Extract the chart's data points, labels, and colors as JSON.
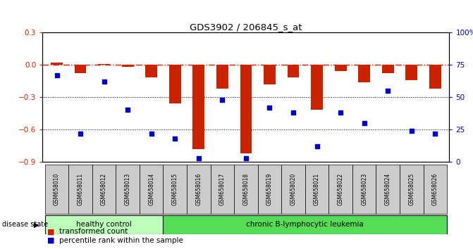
{
  "title": "GDS3902 / 206845_s_at",
  "samples": [
    "GSM658010",
    "GSM658011",
    "GSM658012",
    "GSM658013",
    "GSM658014",
    "GSM658015",
    "GSM658016",
    "GSM658017",
    "GSM658018",
    "GSM658019",
    "GSM658020",
    "GSM658021",
    "GSM658022",
    "GSM658023",
    "GSM658024",
    "GSM658025",
    "GSM658026"
  ],
  "red_values": [
    0.02,
    -0.08,
    0.01,
    -0.02,
    -0.12,
    -0.36,
    -0.78,
    -0.22,
    -0.82,
    -0.18,
    -0.12,
    -0.42,
    -0.06,
    -0.16,
    -0.08,
    -0.14,
    -0.22
  ],
  "blue_values": [
    67,
    22,
    62,
    40,
    22,
    18,
    3,
    48,
    3,
    42,
    38,
    12,
    38,
    30,
    55,
    24,
    22
  ],
  "ylim_left": [
    -0.9,
    0.3
  ],
  "ylim_right": [
    0,
    100
  ],
  "left_yticks": [
    -0.9,
    -0.6,
    -0.3,
    0,
    0.3
  ],
  "right_yticks": [
    0,
    25,
    50,
    75,
    100
  ],
  "right_yticklabels": [
    "0",
    "25",
    "50",
    "75",
    "100%"
  ],
  "healthy_count": 5,
  "healthy_label": "healthy control",
  "disease_label": "chronic B-lymphocytic leukemia",
  "disease_state_label": "disease state",
  "legend_red": "transformed count",
  "legend_blue": "percentile rank within the sample",
  "bar_color": "#cc2200",
  "dot_color": "#0000cc",
  "hline_color": "#cc2200",
  "grid_color": "#000000",
  "healthy_bg": "#bbffbb",
  "disease_bg": "#55dd55",
  "sample_bg": "#cccccc",
  "bar_width": 0.5
}
